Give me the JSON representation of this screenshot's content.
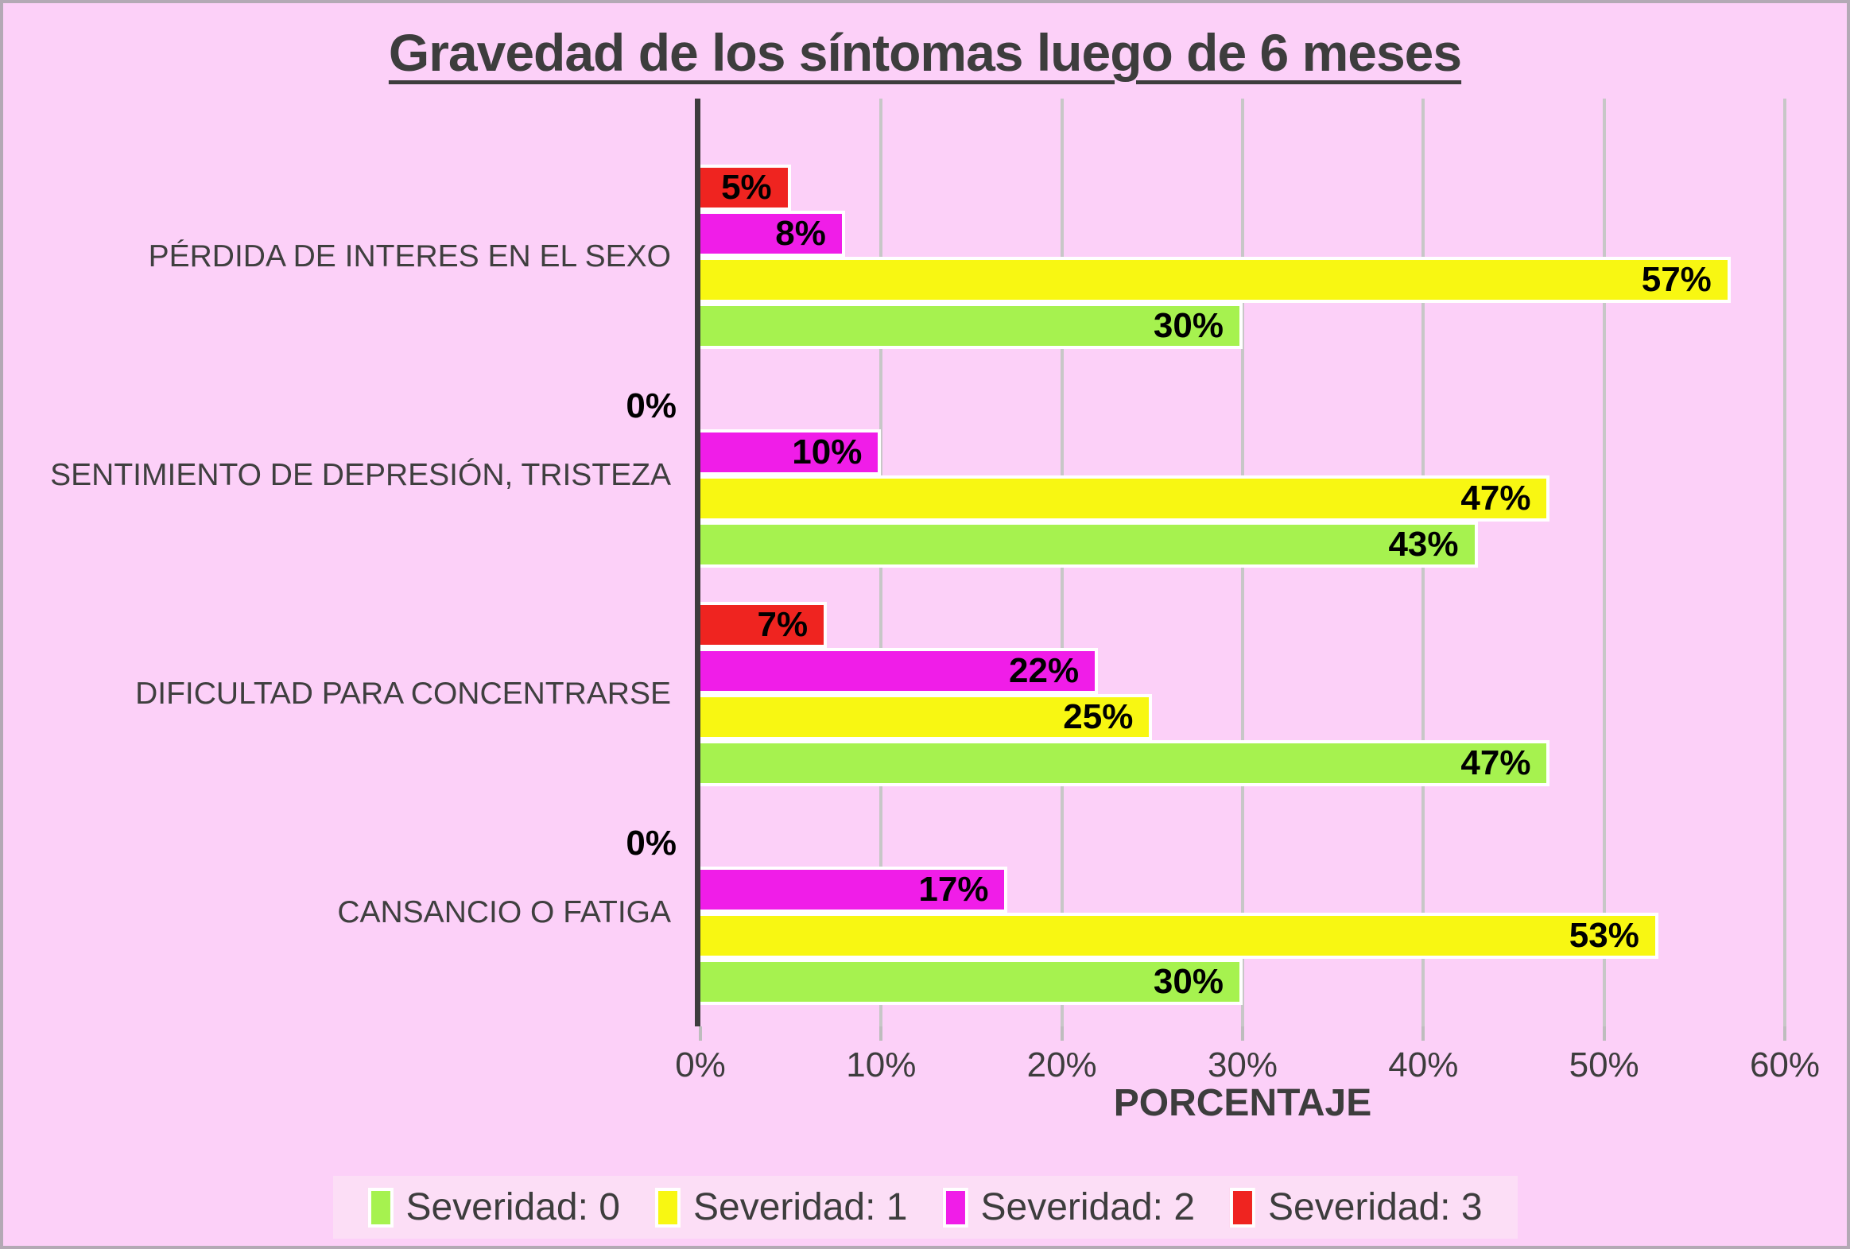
{
  "page": {
    "background_color": "#fcd0f8",
    "border_color": "#b3a9b5"
  },
  "chart_data": {
    "type": "bar",
    "orientation": "horizontal",
    "title": "Gravedad de los síntomas luego de 6 meses",
    "xlabel": "PORCENTAJE",
    "xlim": [
      0,
      60
    ],
    "x_ticks": [
      "0%",
      "10%",
      "20%",
      "30%",
      "40%",
      "50%",
      "60%"
    ],
    "grid": true,
    "legend_position": "bottom",
    "value_label_suffix": "%",
    "categories": [
      "PÉRDIDA DE INTERES EN EL SEXO",
      "SENTIMIENTO DE DEPRESIÓN, TRISTEZA",
      "DIFICULTAD PARA CONCENTRARSE",
      "CANSANCIO O FATIGA"
    ],
    "series": [
      {
        "name": "Severidad: 0",
        "color": "#a6f24f",
        "values": [
          30,
          43,
          47,
          30
        ]
      },
      {
        "name": "Severidad: 1",
        "color": "#f8f712",
        "values": [
          57,
          47,
          25,
          53
        ]
      },
      {
        "name": "Severidad: 2",
        "color": "#f01de8",
        "values": [
          8,
          10,
          22,
          17
        ]
      },
      {
        "name": "Severidad: 3",
        "color": "#ef2420",
        "values": [
          5,
          0,
          7,
          0
        ]
      }
    ],
    "bar_order_top_to_bottom": [
      "Severidad: 3",
      "Severidad: 2",
      "Severidad: 1",
      "Severidad: 0"
    ],
    "colors": {
      "axis_line": "#3d3d3d",
      "gridline": "#c7c7c7",
      "text": "#3d3d3d",
      "value_label": "#000000",
      "bar_border": "#ffffff"
    }
  }
}
